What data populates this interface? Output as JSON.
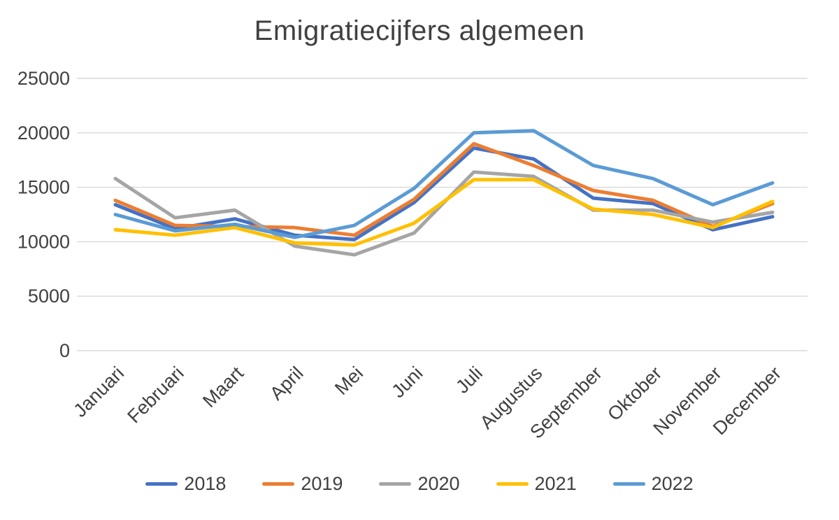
{
  "chart_data": {
    "type": "line",
    "title": "Emigratiecijfers algemeen",
    "xlabel": "",
    "ylabel": "",
    "categories": [
      "Januari",
      "Februari",
      "Maart",
      "April",
      "Mei",
      "Juni",
      "Juli",
      "Augustus",
      "September",
      "Oktober",
      "November",
      "December"
    ],
    "series": [
      {
        "name": "2018",
        "color": "#4472C4",
        "values": [
          13400,
          11200,
          12100,
          10600,
          10200,
          13600,
          18600,
          17600,
          14000,
          13500,
          11100,
          12300
        ]
      },
      {
        "name": "2019",
        "color": "#ED7D31",
        "values": [
          13800,
          11500,
          11400,
          11300,
          10600,
          13900,
          19000,
          17000,
          14700,
          13800,
          11400,
          13500
        ]
      },
      {
        "name": "2020",
        "color": "#A5A5A5",
        "values": [
          15800,
          12200,
          12900,
          9600,
          8800,
          10800,
          16400,
          16000,
          12900,
          12900,
          11800,
          12700
        ]
      },
      {
        "name": "2021",
        "color": "#FFC000",
        "values": [
          11100,
          10600,
          11300,
          9900,
          9700,
          11700,
          15700,
          15700,
          13000,
          12500,
          11300,
          13700
        ]
      },
      {
        "name": "2022",
        "color": "#5B9BD5",
        "values": [
          12500,
          11000,
          11600,
          10400,
          11500,
          14900,
          20000,
          20200,
          17000,
          15800,
          13400,
          15400
        ]
      }
    ],
    "ylim": [
      0,
      25000
    ],
    "y_ticks": [
      0,
      5000,
      10000,
      15000,
      20000,
      25000
    ],
    "grid": "horizontal",
    "legend_position": "bottom",
    "legend_entries": [
      "2018",
      "2019",
      "2020",
      "2021",
      "2022"
    ],
    "text_color": "#404040",
    "grid_color": "#D9D9D9",
    "background_color": "#FFFFFF"
  }
}
